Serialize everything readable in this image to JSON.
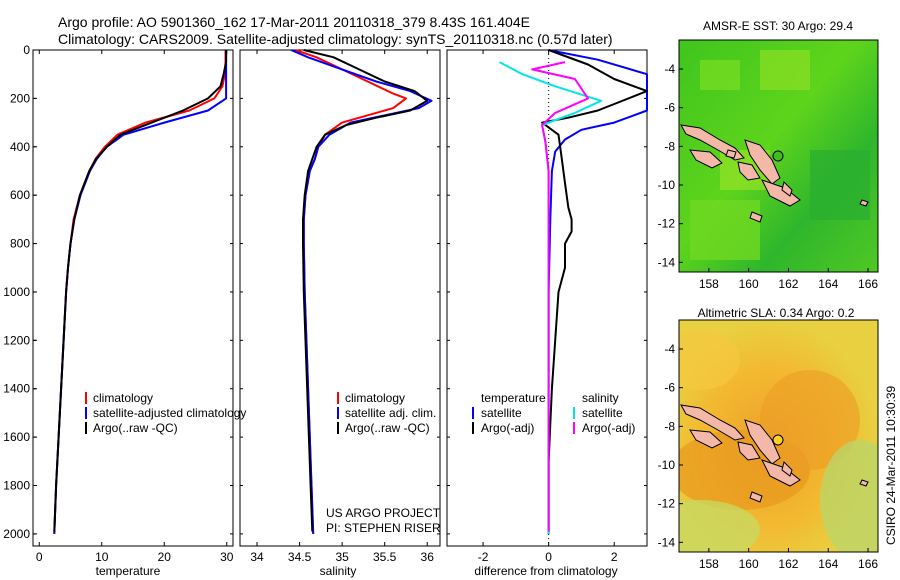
{
  "title_line1": "Argo profile: AO 5901360_162 17-Mar-2011 20110318_379 8.43S 161.404E",
  "title_line2": "Climatology: CARS2009. Satellite-adjusted climatology: synTS_20110318.nc (0.57d later)",
  "credit_project": "US ARGO PROJECT",
  "credit_pi": "PI: STEPHEN RISER",
  "footer_stamp": "CSIRO 24-Mar-2011 10:30:39",
  "colors": {
    "climatology": "#ff0000",
    "satellite": "#0000ff",
    "argo": "#000000",
    "satellite_salinity": "#00e5e5",
    "argo_salinity": "#ff00ff"
  },
  "chart_data": [
    {
      "type": "line",
      "id": "temperature",
      "xlabel": "temperature",
      "ylabel": "",
      "xlim": [
        -1,
        31
      ],
      "ylim": [
        2050,
        0
      ],
      "xticks": [
        0,
        10,
        20,
        30
      ],
      "yticks": [
        0,
        200,
        400,
        600,
        800,
        1000,
        1200,
        1400,
        1600,
        1800,
        2000
      ],
      "legend": [
        "climatology",
        "satellite-adjusted climatology",
        "Argo(..raw -QC)"
      ],
      "series": [
        {
          "name": "climatology",
          "color": "#ff0000",
          "points": [
            [
              29.8,
              0
            ],
            [
              29.8,
              50
            ],
            [
              29.7,
              100
            ],
            [
              29.3,
              150
            ],
            [
              28.0,
              200
            ],
            [
              24.0,
              250
            ],
            [
              17.0,
              300
            ],
            [
              12.5,
              350
            ],
            [
              10.5,
              400
            ],
            [
              9.0,
              450
            ],
            [
              8.0,
              500
            ],
            [
              6.5,
              600
            ],
            [
              5.5,
              700
            ],
            [
              5.0,
              800
            ],
            [
              4.6,
              900
            ],
            [
              4.3,
              1000
            ],
            [
              3.9,
              1200
            ],
            [
              3.5,
              1400
            ],
            [
              3.1,
              1600
            ],
            [
              2.7,
              1800
            ],
            [
              2.4,
              2000
            ]
          ]
        },
        {
          "name": "satellite-adjusted climatology",
          "color": "#0000ff",
          "points": [
            [
              29.9,
              0
            ],
            [
              29.9,
              50
            ],
            [
              29.9,
              100
            ],
            [
              29.9,
              150
            ],
            [
              29.9,
              200
            ],
            [
              27.0,
              250
            ],
            [
              20.0,
              300
            ],
            [
              13.5,
              350
            ],
            [
              10.8,
              400
            ],
            [
              9.2,
              450
            ],
            [
              8.1,
              500
            ],
            [
              6.6,
              600
            ],
            [
              5.6,
              700
            ],
            [
              5.0,
              800
            ],
            [
              4.6,
              900
            ],
            [
              4.3,
              1000
            ],
            [
              3.9,
              1200
            ],
            [
              3.5,
              1400
            ],
            [
              3.1,
              1600
            ],
            [
              2.7,
              1800
            ],
            [
              2.4,
              2000
            ]
          ]
        },
        {
          "name": "Argo(..raw -QC)",
          "color": "#000000",
          "points": [
            [
              29.9,
              0
            ],
            [
              29.9,
              50
            ],
            [
              29.5,
              100
            ],
            [
              29.0,
              150
            ],
            [
              27.0,
              200
            ],
            [
              23.0,
              250
            ],
            [
              18.0,
              300
            ],
            [
              13.0,
              350
            ],
            [
              10.8,
              400
            ],
            [
              9.1,
              450
            ],
            [
              8.0,
              500
            ],
            [
              6.5,
              600
            ],
            [
              5.6,
              700
            ],
            [
              5.0,
              800
            ],
            [
              4.6,
              900
            ],
            [
              4.3,
              1000
            ],
            [
              3.9,
              1200
            ],
            [
              3.5,
              1400
            ],
            [
              3.1,
              1600
            ],
            [
              2.7,
              1800
            ],
            [
              2.4,
              1990
            ]
          ]
        }
      ]
    },
    {
      "type": "line",
      "id": "salinity",
      "xlabel": "salinity",
      "xlim": [
        33.8,
        36.15
      ],
      "ylim": [
        2050,
        0
      ],
      "xticks": [
        34,
        34.5,
        35,
        35.5,
        36
      ],
      "legend": [
        "climatology",
        "satellite adj. clim.",
        "Argo(..raw -QC)"
      ],
      "series": [
        {
          "name": "climatology",
          "color": "#ff0000",
          "points": [
            [
              34.45,
              0
            ],
            [
              34.7,
              30
            ],
            [
              35.0,
              80
            ],
            [
              35.3,
              130
            ],
            [
              35.6,
              180
            ],
            [
              35.75,
              200
            ],
            [
              35.6,
              240
            ],
            [
              35.3,
              270
            ],
            [
              35.0,
              300
            ],
            [
              34.8,
              350
            ],
            [
              34.72,
              400
            ],
            [
              34.68,
              450
            ],
            [
              34.62,
              500
            ],
            [
              34.57,
              600
            ],
            [
              34.55,
              700
            ],
            [
              34.55,
              800
            ],
            [
              34.56,
              1000
            ],
            [
              34.58,
              1200
            ],
            [
              34.6,
              1400
            ],
            [
              34.62,
              1600
            ],
            [
              34.64,
              1800
            ],
            [
              34.66,
              2000
            ]
          ]
        },
        {
          "name": "satellite adj. clim.",
          "color": "#0000ff",
          "points": [
            [
              34.4,
              0
            ],
            [
              34.6,
              30
            ],
            [
              35.0,
              80
            ],
            [
              35.4,
              130
            ],
            [
              35.8,
              170
            ],
            [
              36.05,
              210
            ],
            [
              35.9,
              240
            ],
            [
              35.5,
              270
            ],
            [
              35.1,
              300
            ],
            [
              34.85,
              350
            ],
            [
              34.72,
              400
            ],
            [
              34.68,
              450
            ],
            [
              34.62,
              500
            ],
            [
              34.57,
              600
            ],
            [
              34.55,
              700
            ],
            [
              34.55,
              800
            ],
            [
              34.56,
              1000
            ],
            [
              34.58,
              1200
            ],
            [
              34.6,
              1400
            ],
            [
              34.62,
              1600
            ],
            [
              34.64,
              1800
            ],
            [
              34.66,
              2000
            ]
          ]
        },
        {
          "name": "Argo(..raw -QC)",
          "color": "#000000",
          "points": [
            [
              34.55,
              0
            ],
            [
              34.9,
              30
            ],
            [
              35.2,
              80
            ],
            [
              35.5,
              130
            ],
            [
              35.85,
              170
            ],
            [
              36.0,
              210
            ],
            [
              35.8,
              250
            ],
            [
              35.4,
              280
            ],
            [
              35.05,
              310
            ],
            [
              34.8,
              350
            ],
            [
              34.7,
              400
            ],
            [
              34.65,
              450
            ],
            [
              34.6,
              500
            ],
            [
              34.56,
              600
            ],
            [
              34.54,
              700
            ],
            [
              34.54,
              800
            ],
            [
              34.55,
              1000
            ],
            [
              34.57,
              1200
            ],
            [
              34.59,
              1400
            ],
            [
              34.61,
              1600
            ],
            [
              34.63,
              1800
            ],
            [
              34.65,
              1990
            ]
          ]
        }
      ]
    },
    {
      "type": "line",
      "id": "difference",
      "xlabel": "difference from climatology",
      "xlim": [
        -3.1,
        3.0
      ],
      "ylim": [
        2050,
        0
      ],
      "xticks": [
        -2,
        0,
        2
      ],
      "legend_temperature_title": "temperature",
      "legend_salinity_title": "salinity",
      "legend": [
        "satellite",
        "Argo(-adj)",
        "satellite",
        "Argo(-adj)"
      ],
      "series": [
        {
          "name": "satellite",
          "color": "#0000ff",
          "points": [
            [
              0.0,
              0
            ],
            [
              1.5,
              40
            ],
            [
              3.0,
              100
            ],
            [
              3.0,
              250
            ],
            [
              2.0,
              300
            ],
            [
              1.0,
              330
            ],
            [
              0.5,
              370
            ],
            [
              0.2,
              420
            ],
            [
              0.1,
              500
            ],
            [
              0.05,
              700
            ],
            [
              0.0,
              1000
            ],
            [
              0.0,
              1400
            ],
            [
              0.0,
              2000
            ]
          ]
        },
        {
          "name": "Argo(-adj)",
          "color": "#000000",
          "points": [
            [
              0.0,
              0
            ],
            [
              1.2,
              60
            ],
            [
              2.0,
              120
            ],
            [
              3.0,
              170
            ],
            [
              1.5,
              250
            ],
            [
              0.6,
              280
            ],
            [
              -0.2,
              300
            ],
            [
              0.3,
              350
            ],
            [
              0.4,
              450
            ],
            [
              0.5,
              550
            ],
            [
              0.6,
              650
            ],
            [
              0.7,
              700
            ],
            [
              0.7,
              750
            ],
            [
              0.5,
              800
            ],
            [
              0.5,
              900
            ],
            [
              0.3,
              1000
            ],
            [
              0.2,
              1200
            ],
            [
              0.1,
              1400
            ],
            [
              0.0,
              1700
            ],
            [
              0.0,
              1990
            ]
          ]
        },
        {
          "name": "satellite",
          "color": "#00e5e5",
          "points": [
            [
              -1.5,
              50
            ],
            [
              -0.8,
              100
            ],
            [
              0.2,
              150
            ],
            [
              1.6,
              210
            ],
            [
              0.8,
              260
            ],
            [
              -0.2,
              310
            ],
            [
              -0.1,
              380
            ],
            [
              0.0,
              500
            ],
            [
              0.0,
              800
            ],
            [
              0.0,
              1200
            ],
            [
              0.0,
              1600
            ],
            [
              0.0,
              2000
            ]
          ]
        },
        {
          "name": "Argo(-adj)",
          "color": "#ff00ff",
          "points": [
            [
              0.5,
              50
            ],
            [
              -0.5,
              80
            ],
            [
              0.8,
              120
            ],
            [
              1.2,
              200
            ],
            [
              0.2,
              260
            ],
            [
              -0.2,
              310
            ],
            [
              -0.1,
              380
            ],
            [
              0.0,
              500
            ],
            [
              0.0,
              800
            ],
            [
              0.0,
              1200
            ],
            [
              0.0,
              1600
            ],
            [
              0.0,
              1990
            ]
          ]
        }
      ]
    }
  ],
  "maps": [
    {
      "id": "sst",
      "title": "AMSR-E SST: 30  Argo: 29.4",
      "xticks": [
        158,
        160,
        162,
        164,
        166
      ],
      "yticks": [
        -4,
        -6,
        -8,
        -10,
        -12,
        -14
      ],
      "xlim": [
        156.5,
        166.5
      ],
      "ylim": [
        -14.5,
        -2.5
      ],
      "field_colors": [
        "#3ec41d",
        "#57d21c",
        "#80e020",
        "#2fb52a"
      ],
      "argo_position": [
        161.4,
        -8.43
      ]
    },
    {
      "id": "sla",
      "title": "Altimetric SLA: 0.34  Argo: 0.2",
      "xticks": [
        158,
        160,
        162,
        164,
        166
      ],
      "yticks": [
        -4,
        -6,
        -8,
        -10,
        -12,
        -14
      ],
      "xlim": [
        156.5,
        166.5
      ],
      "ylim": [
        -14.5,
        -2.5
      ],
      "field_colors": [
        "#f0a020",
        "#f4c030",
        "#d8d850",
        "#b8d060"
      ],
      "argo_position": [
        161.4,
        -8.43
      ]
    }
  ]
}
